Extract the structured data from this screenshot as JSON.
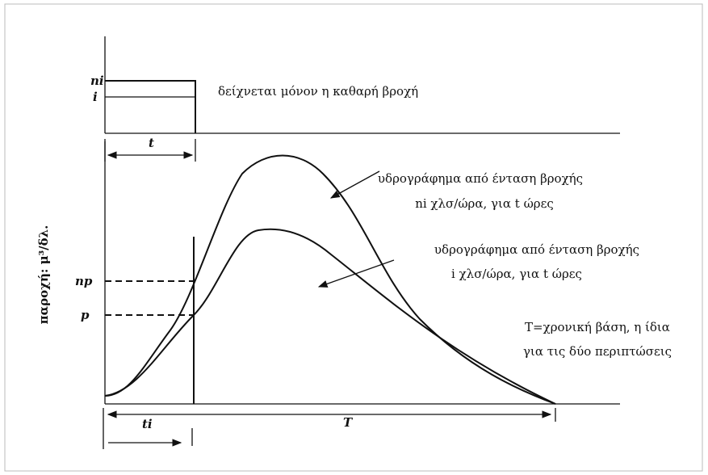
{
  "diagram": {
    "rain_note": "δείχνεται μόνον η καθαρή βροχή",
    "ni_label": "ni",
    "i_label": "i",
    "t_label": "t",
    "np_label": "np",
    "p_label": "p",
    "y_axis_label": "παροχή: μ³/δλ.",
    "curve_upper": [
      "υδρογράφημα από ένταση βροχής",
      "ni χλσ/ώρα, για t ώρες"
    ],
    "curve_lower": [
      "υδρογράφημα από ένταση βροχής",
      "i χλσ/ώρα, για t ώρες"
    ],
    "base_note": [
      "T=χρονική βάση, η ίδια",
      "για τις δύο περιπτώσεις"
    ],
    "ti_label": "ti",
    "T_label": "T"
  }
}
